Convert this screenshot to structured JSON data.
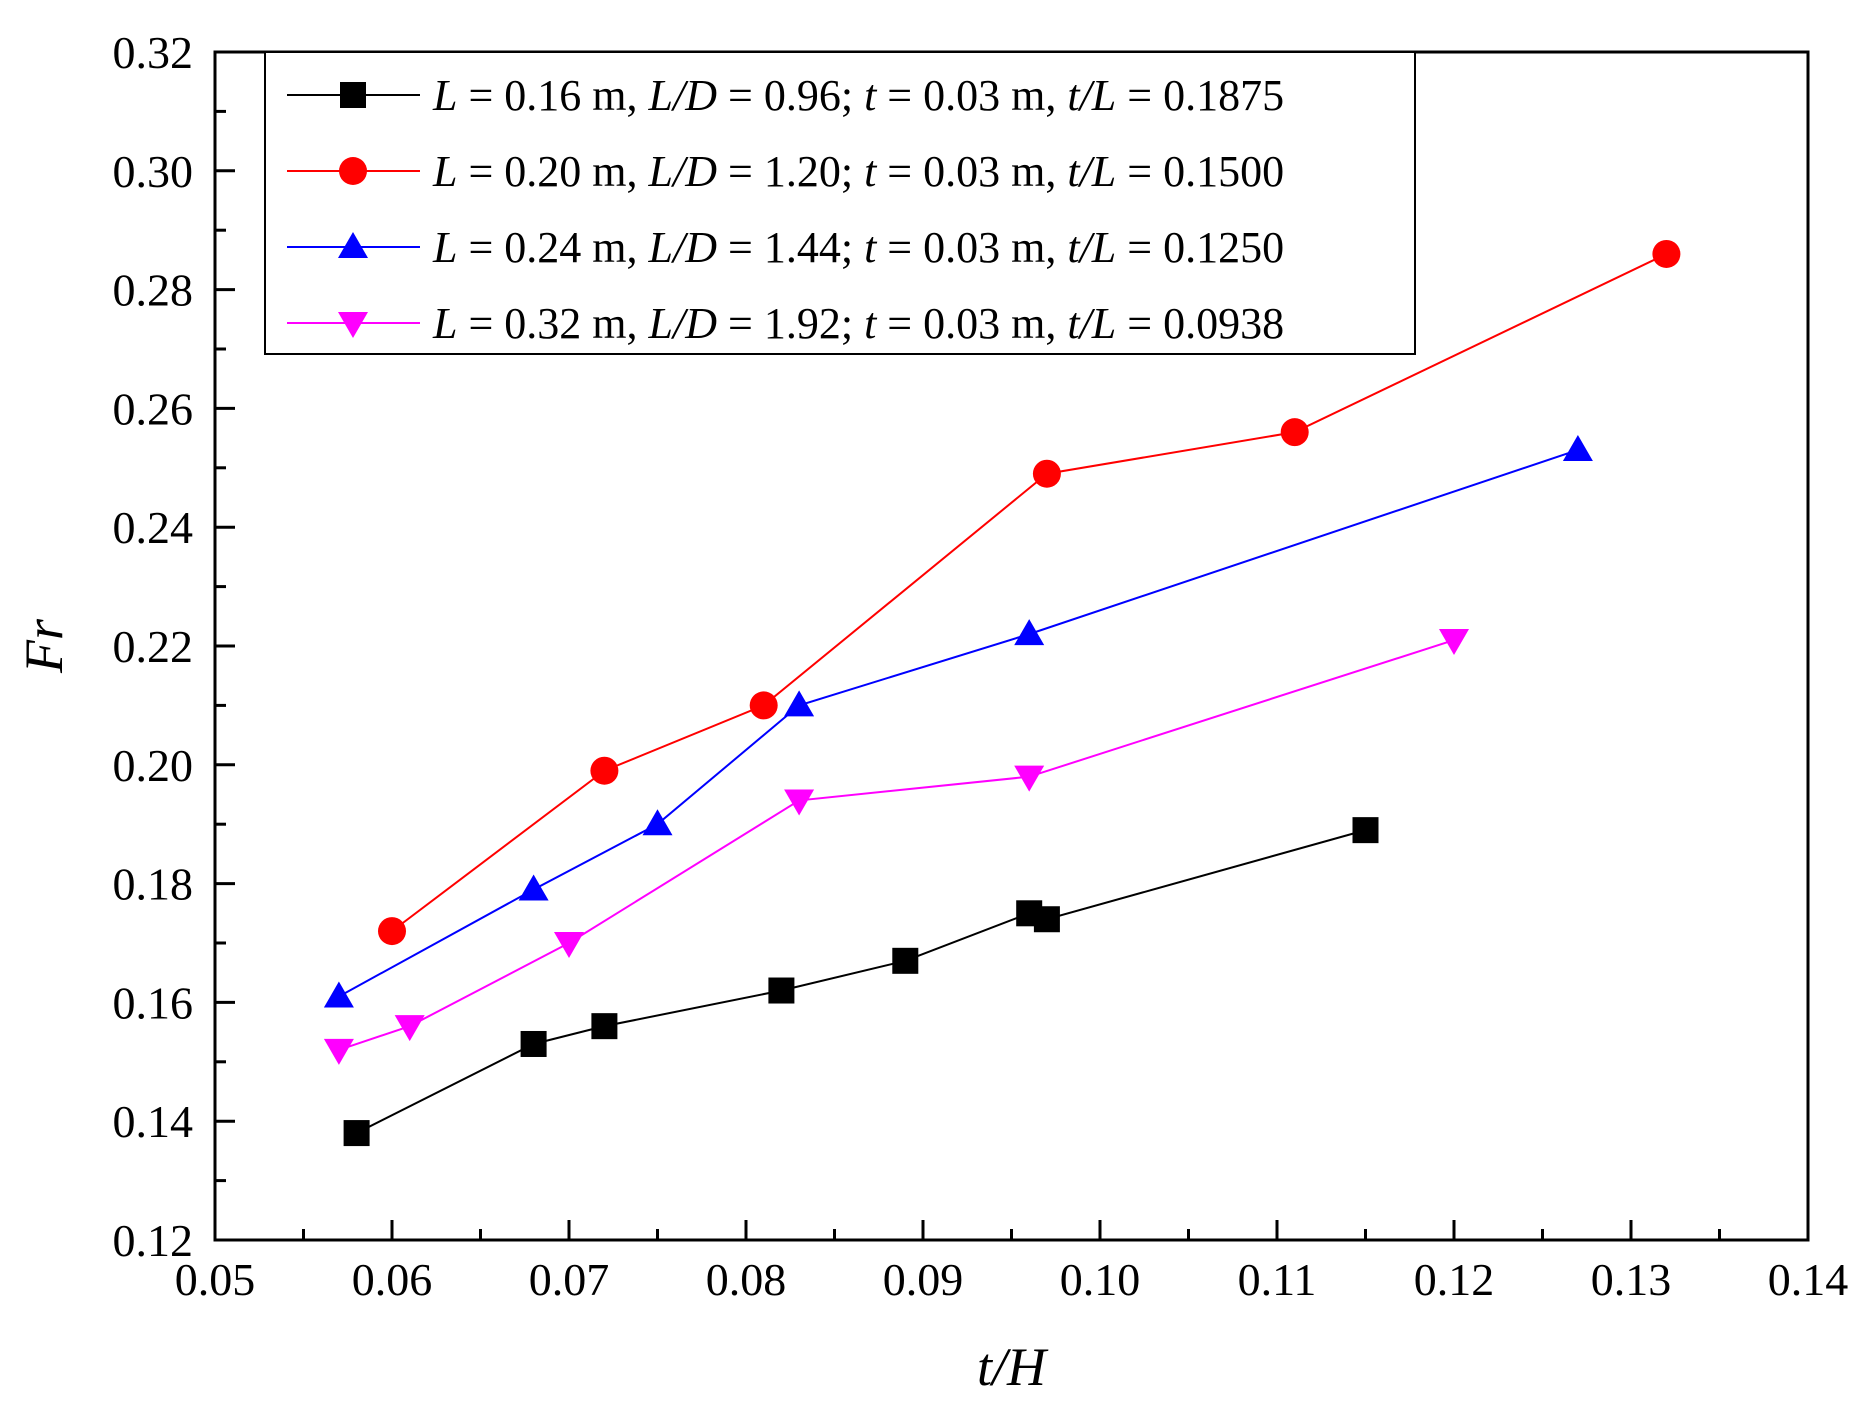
{
  "chart_data": {
    "type": "line",
    "title": "",
    "xlabel": "t/H",
    "ylabel": "Fr",
    "xlim": [
      0.05,
      0.14
    ],
    "ylim": [
      0.12,
      0.32
    ],
    "xticks": [
      0.05,
      0.06,
      0.07,
      0.08,
      0.09,
      0.1,
      0.11,
      0.12,
      0.13,
      0.14
    ],
    "yticks": [
      0.12,
      0.14,
      0.16,
      0.18,
      0.2,
      0.22,
      0.24,
      0.26,
      0.28,
      0.3,
      0.32
    ],
    "xtick_labels": [
      "0.05",
      "0.06",
      "0.07",
      "0.08",
      "0.09",
      "0.10",
      "0.11",
      "0.12",
      "0.13",
      "0.14"
    ],
    "ytick_labels": [
      "0.12",
      "0.14",
      "0.16",
      "0.18",
      "0.20",
      "0.22",
      "0.24",
      "0.26",
      "0.28",
      "0.30",
      "0.32"
    ],
    "grid": false,
    "legend_position": "top-left",
    "series": [
      {
        "name": "L = 0.16 m, L/D = 0.96; t = 0.03 m, t/L = 0.1875",
        "label_parts": [
          "L",
          " = 0.16 m, ",
          "L/D",
          " = 0.96; ",
          "t",
          " = 0.03 m, ",
          "t/L",
          " = 0.1875"
        ],
        "color": "#000000",
        "marker": "square",
        "x": [
          0.058,
          0.068,
          0.072,
          0.082,
          0.089,
          0.096,
          0.097,
          0.115
        ],
        "y": [
          0.138,
          0.153,
          0.156,
          0.162,
          0.167,
          0.175,
          0.174,
          0.189
        ]
      },
      {
        "name": "L = 0.20 m, L/D = 1.20; t = 0.03 m, t/L = 0.1500",
        "label_parts": [
          "L",
          " = 0.20 m, ",
          "L/D",
          " = 1.20; ",
          "t",
          " = 0.03 m, ",
          "t/L",
          " = 0.1500"
        ],
        "color": "#ff0000",
        "marker": "circle",
        "x": [
          0.06,
          0.072,
          0.081,
          0.097,
          0.111,
          0.132
        ],
        "y": [
          0.172,
          0.199,
          0.21,
          0.249,
          0.256,
          0.286
        ]
      },
      {
        "name": "L = 0.24 m, L/D = 1.44; t = 0.03 m, t/L = 0.1250",
        "label_parts": [
          "L",
          " = 0.24 m, ",
          "L/D",
          " = 1.44; ",
          "t",
          " = 0.03 m, ",
          "t/L",
          " = 0.1250"
        ],
        "color": "#0000ff",
        "marker": "triangle-up",
        "x": [
          0.057,
          0.068,
          0.075,
          0.083,
          0.096,
          0.127
        ],
        "y": [
          0.161,
          0.179,
          0.19,
          0.21,
          0.222,
          0.253
        ]
      },
      {
        "name": "L = 0.32 m, L/D = 1.92; t = 0.03 m, t/L = 0.0938",
        "label_parts": [
          "L",
          " = 0.32 m, ",
          "L/D",
          " = 1.92; ",
          "t",
          " = 0.03 m, ",
          "t/L",
          " = 0.0938"
        ],
        "color": "#ff00ff",
        "marker": "triangle-down",
        "x": [
          0.057,
          0.061,
          0.07,
          0.083,
          0.096,
          0.12
        ],
        "y": [
          0.152,
          0.156,
          0.17,
          0.194,
          0.198,
          0.221
        ]
      }
    ]
  }
}
